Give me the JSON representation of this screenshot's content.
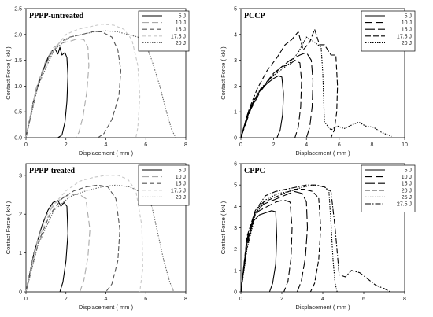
{
  "chart_data": [
    {
      "type": "line",
      "title": "PPPP-untreated",
      "xlabel": "Displacement ( mm )",
      "ylabel": "Contact Force ( kN )",
      "xlim": [
        0,
        8
      ],
      "ylim": [
        0,
        2.5
      ],
      "xticks": [
        "0",
        "2",
        "4",
        "6",
        "8"
      ],
      "yticks": [
        "0.0",
        "0.5",
        "1.0",
        "1.5",
        "2.0",
        "2.5"
      ],
      "legend_position": "top-right",
      "series": [
        {
          "name": "5 J",
          "color": "#000000",
          "dash": "solid",
          "x": [
            0,
            0.4,
            0.8,
            1.1,
            1.3,
            1.45,
            1.6,
            1.7,
            1.8,
            1.95,
            2.05,
            2.1,
            2.05,
            1.95,
            1.8,
            1.6
          ],
          "y": [
            0,
            0.75,
            1.25,
            1.55,
            1.68,
            1.72,
            1.62,
            1.75,
            1.6,
            1.65,
            1.55,
            1.2,
            0.7,
            0.3,
            0.05,
            0
          ]
        },
        {
          "name": "10 J",
          "color": "#aaaaaa",
          "dash": "8,4",
          "x": [
            0,
            0.5,
            1.0,
            1.4,
            1.7,
            2.0,
            2.3,
            2.6,
            2.9,
            3.1,
            3.15,
            3.05,
            2.85,
            2.65,
            2.5
          ],
          "y": [
            0,
            0.95,
            1.5,
            1.75,
            1.82,
            1.85,
            1.88,
            1.92,
            1.9,
            1.75,
            1.4,
            0.9,
            0.4,
            0.1,
            0
          ]
        },
        {
          "name": "15 J",
          "color": "#555555",
          "dash": "6,3",
          "x": [
            0,
            0.6,
            1.2,
            1.7,
            2.2,
            2.8,
            3.3,
            3.8,
            4.3,
            4.6,
            4.75,
            4.65,
            4.3,
            3.9,
            3.6
          ],
          "y": [
            0,
            1.05,
            1.6,
            1.85,
            1.95,
            2.0,
            2.05,
            2.05,
            1.95,
            1.7,
            1.3,
            0.8,
            0.35,
            0.08,
            0
          ]
        },
        {
          "name": "17.5 J",
          "color": "#c8c8c8",
          "dash": "4,3",
          "x": [
            0,
            0.6,
            1.3,
            2.0,
            2.6,
            3.2,
            3.8,
            4.4,
            4.9,
            5.3,
            5.6,
            5.7,
            5.6,
            5.5
          ],
          "y": [
            0,
            1.05,
            1.65,
            2.0,
            2.1,
            2.15,
            2.2,
            2.18,
            2.1,
            1.9,
            1.4,
            0.8,
            0.2,
            0
          ]
        },
        {
          "name": "20 J",
          "color": "#666666",
          "dash": "1.5,1.5",
          "x": [
            0,
            0.6,
            1.4,
            2.2,
            2.8,
            3.4,
            4.0,
            4.6,
            5.1,
            5.6,
            6.0,
            6.3,
            6.7,
            7.0,
            7.3,
            7.5
          ],
          "y": [
            0,
            1.0,
            1.7,
            1.95,
            2.0,
            2.05,
            2.07,
            2.05,
            2.0,
            1.95,
            1.8,
            1.5,
            1.0,
            0.55,
            0.15,
            0
          ]
        }
      ]
    },
    {
      "type": "line",
      "title": "PCCP",
      "xlabel": "Displacement ( mm )",
      "ylabel": "Contact Force ( kN )",
      "xlim": [
        0,
        10
      ],
      "ylim": [
        0,
        5
      ],
      "xticks": [
        "0",
        "2",
        "4",
        "6",
        "8",
        "10"
      ],
      "yticks": [
        "0",
        "1",
        "2",
        "3",
        "4",
        "5"
      ],
      "legend_position": "top-right",
      "series": [
        {
          "name": "5 J",
          "color": "#000000",
          "dash": "solid",
          "x": [
            0,
            0.4,
            0.8,
            1.2,
            1.6,
            2.0,
            2.3,
            2.5,
            2.6,
            2.55,
            2.4,
            2.2
          ],
          "y": [
            0,
            0.9,
            1.45,
            1.85,
            2.1,
            2.3,
            2.4,
            2.35,
            1.7,
            0.9,
            0.3,
            0
          ]
        },
        {
          "name": "10 J",
          "color": "#000000",
          "dash": "9,4",
          "x": [
            0,
            0.5,
            1.0,
            1.5,
            2.0,
            2.5,
            3.0,
            3.3,
            3.6,
            3.7,
            3.65,
            3.5,
            3.3
          ],
          "y": [
            0,
            1.0,
            1.65,
            2.1,
            2.5,
            2.75,
            2.85,
            3.0,
            2.9,
            2.2,
            1.2,
            0.4,
            0
          ]
        },
        {
          "name": "15 J",
          "color": "#000000",
          "dash": "12,4",
          "x": [
            0,
            0.6,
            1.2,
            1.8,
            2.4,
            3.0,
            3.6,
            4.0,
            4.3,
            4.4,
            4.35,
            4.2,
            4.0
          ],
          "y": [
            0,
            1.1,
            1.8,
            2.3,
            2.7,
            3.0,
            3.2,
            3.3,
            3.0,
            2.2,
            1.2,
            0.4,
            0
          ]
        },
        {
          "name": "17.5 J",
          "color": "#000000",
          "dash": "7,3",
          "x": [
            0,
            0.5,
            1.0,
            1.6,
            2.2,
            2.7,
            3.1,
            3.5,
            3.8,
            4.2,
            4.5,
            4.8,
            5.1,
            5.5,
            5.8,
            5.9,
            5.85,
            5.7,
            5.5
          ],
          "y": [
            0,
            1.1,
            1.9,
            2.6,
            3.1,
            3.6,
            3.8,
            4.1,
            3.4,
            3.7,
            4.2,
            3.6,
            3.6,
            3.2,
            3.2,
            2.0,
            1.0,
            0.3,
            0
          ]
        },
        {
          "name": "20 J",
          "color": "#000000",
          "dash": "1.5,1.5",
          "x": [
            0,
            0.6,
            1.2,
            1.8,
            2.4,
            3.0,
            3.5,
            4.0,
            4.5,
            4.9,
            5.0,
            5.1,
            5.5,
            5.9,
            6.3,
            6.8,
            7.2,
            7.6,
            8.1,
            8.6,
            9.2
          ],
          "y": [
            0,
            1.2,
            1.9,
            2.3,
            2.6,
            2.9,
            3.3,
            3.9,
            3.7,
            3.5,
            2.5,
            0.6,
            0.3,
            0.45,
            0.35,
            0.5,
            0.6,
            0.45,
            0.4,
            0.2,
            0.05
          ]
        }
      ]
    },
    {
      "type": "line",
      "title": "PPPP-treated",
      "xlabel": "Displacement ( mm )",
      "ylabel": "Contact Force ( kN )",
      "xlim": [
        0,
        8
      ],
      "ylim": [
        0,
        3.3
      ],
      "xticks": [
        "0",
        "2",
        "4",
        "6",
        "8"
      ],
      "yticks": [
        "0",
        "1",
        "2",
        "3"
      ],
      "legend_position": "top-right",
      "series": [
        {
          "name": "5 J",
          "color": "#000000",
          "dash": "solid",
          "x": [
            0,
            0.4,
            0.8,
            1.1,
            1.35,
            1.6,
            1.75,
            1.9,
            2.05,
            2.1,
            2.0,
            1.85,
            1.7
          ],
          "y": [
            0,
            1.0,
            1.7,
            2.1,
            2.3,
            2.35,
            2.2,
            2.3,
            2.2,
            1.5,
            0.8,
            0.25,
            0
          ]
        },
        {
          "name": "10 J",
          "color": "#aaaaaa",
          "dash": "8,4",
          "x": [
            0,
            0.5,
            1.0,
            1.5,
            1.9,
            2.3,
            2.7,
            3.0,
            3.2,
            3.1,
            2.9,
            2.7
          ],
          "y": [
            0,
            1.2,
            1.95,
            2.3,
            2.45,
            2.5,
            2.5,
            2.4,
            1.6,
            0.9,
            0.3,
            0
          ]
        },
        {
          "name": "15 J",
          "color": "#555555",
          "dash": "6,3",
          "x": [
            0,
            0.6,
            1.2,
            1.8,
            2.4,
            3.0,
            3.6,
            4.1,
            4.5,
            4.7,
            4.6,
            4.3,
            4.0
          ],
          "y": [
            0,
            1.25,
            2.0,
            2.4,
            2.6,
            2.7,
            2.75,
            2.7,
            2.4,
            1.6,
            0.8,
            0.2,
            0
          ]
        },
        {
          "name": "17.5 J",
          "color": "#c8c8c8",
          "dash": "4,3",
          "x": [
            0,
            0.6,
            1.3,
            2.0,
            2.7,
            3.4,
            4.0,
            4.6,
            5.1,
            5.5,
            5.8,
            5.85,
            5.7
          ],
          "y": [
            0,
            1.3,
            2.2,
            2.6,
            2.85,
            2.95,
            3.0,
            3.0,
            2.9,
            2.6,
            1.7,
            0.6,
            0
          ]
        },
        {
          "name": "20 J",
          "color": "#666666",
          "dash": "1.5,1.5",
          "x": [
            0,
            0.6,
            1.4,
            2.2,
            3.0,
            3.8,
            4.5,
            5.2,
            5.8,
            6.3,
            6.6,
            6.9,
            7.2,
            7.4
          ],
          "y": [
            0,
            1.2,
            2.1,
            2.45,
            2.6,
            2.7,
            2.75,
            2.7,
            2.55,
            2.2,
            1.5,
            0.8,
            0.25,
            0
          ]
        }
      ]
    },
    {
      "type": "line",
      "title": "CPPC",
      "xlabel": "Displacement ( mm )",
      "ylabel": "Contact Force ( kN )",
      "xlim": [
        0,
        8
      ],
      "ylim": [
        0,
        6
      ],
      "xticks": [
        "0",
        "2",
        "4",
        "6",
        "8"
      ],
      "yticks": [
        "0",
        "1",
        "2",
        "3",
        "4",
        "5",
        "6"
      ],
      "legend_position": "top-right",
      "series": [
        {
          "name": "5 J",
          "color": "#000000",
          "dash": "solid",
          "x": [
            0,
            0.3,
            0.6,
            0.9,
            1.2,
            1.5,
            1.7,
            1.75,
            1.7,
            1.55,
            1.4
          ],
          "y": [
            0,
            2.3,
            3.3,
            3.6,
            3.7,
            3.8,
            3.75,
            2.6,
            1.3,
            0.4,
            0
          ]
        },
        {
          "name": "10 J",
          "color": "#000000",
          "dash": "9,4",
          "x": [
            0,
            0.3,
            0.6,
            0.9,
            1.3,
            1.7,
            2.1,
            2.4,
            2.5,
            2.45,
            2.3,
            2.1
          ],
          "y": [
            0,
            2.4,
            3.5,
            3.8,
            4.0,
            4.2,
            4.3,
            4.2,
            3.0,
            1.6,
            0.5,
            0
          ]
        },
        {
          "name": "15 J",
          "color": "#000000",
          "dash": "12,4",
          "x": [
            0,
            0.3,
            0.7,
            1.1,
            1.6,
            2.1,
            2.6,
            3.0,
            3.2,
            3.25,
            3.15,
            2.95,
            2.75
          ],
          "y": [
            0,
            2.5,
            3.7,
            4.1,
            4.3,
            4.5,
            4.7,
            4.6,
            4.2,
            3.0,
            1.6,
            0.5,
            0
          ]
        },
        {
          "name": "20 J",
          "color": "#000000",
          "dash": "6,3",
          "x": [
            0,
            0.3,
            0.7,
            1.1,
            1.6,
            2.1,
            2.6,
            3.1,
            3.5,
            3.8,
            3.9,
            3.8,
            3.6,
            3.4
          ],
          "y": [
            0,
            2.6,
            3.8,
            4.2,
            4.4,
            4.6,
            4.8,
            4.8,
            4.7,
            4.4,
            3.0,
            1.5,
            0.4,
            0
          ]
        },
        {
          "name": "25 J",
          "color": "#000000",
          "dash": "1.5,1.5",
          "x": [
            0,
            0.3,
            0.7,
            1.2,
            1.8,
            2.4,
            3.0,
            3.6,
            4.1,
            4.3,
            4.4,
            4.5,
            4.6,
            4.7
          ],
          "y": [
            0,
            2.0,
            3.6,
            4.3,
            4.6,
            4.7,
            4.9,
            5.0,
            4.9,
            4.7,
            3.2,
            1.5,
            0.4,
            0
          ]
        },
        {
          "name": "27.5 J",
          "color": "#000000",
          "dash": "7,2,1.5,2",
          "x": [
            0,
            0.3,
            0.7,
            1.2,
            1.7,
            2.2,
            2.7,
            3.2,
            3.7,
            4.1,
            4.4,
            4.6,
            4.8,
            5.1,
            5.4,
            5.8,
            6.2,
            6.6,
            7.0,
            7.3
          ],
          "y": [
            0,
            2.1,
            3.8,
            4.5,
            4.7,
            4.8,
            4.9,
            5.0,
            5.0,
            4.9,
            4.7,
            3.0,
            0.8,
            0.7,
            1.0,
            0.9,
            0.6,
            0.3,
            0.15,
            0
          ]
        }
      ]
    }
  ]
}
